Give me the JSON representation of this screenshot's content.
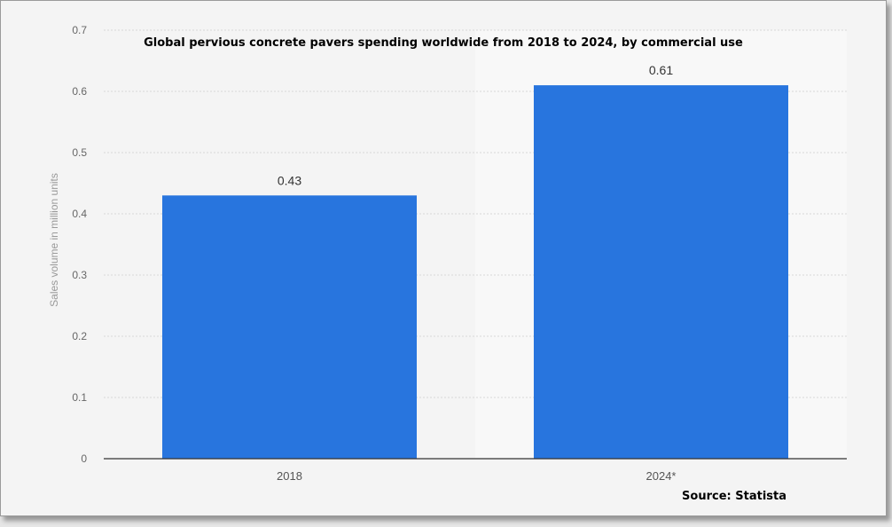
{
  "chart_data": {
    "type": "bar",
    "title": "Global pervious concrete pavers spending worldwide from 2018 to 2024, by commercial use",
    "ylabel": "Sales volume in million units",
    "xlabel": "",
    "categories": [
      "2018",
      "2024*"
    ],
    "values": [
      0.43,
      0.61
    ],
    "value_labels": [
      "0.43",
      "0.61"
    ],
    "ylim": [
      0,
      0.7
    ],
    "yticks": [
      "0",
      "0.1",
      "0.2",
      "0.3",
      "0.4",
      "0.5",
      "0.6",
      "0.7"
    ],
    "grid": true,
    "bar_color": "#2875de",
    "source": "Source: Statista"
  }
}
